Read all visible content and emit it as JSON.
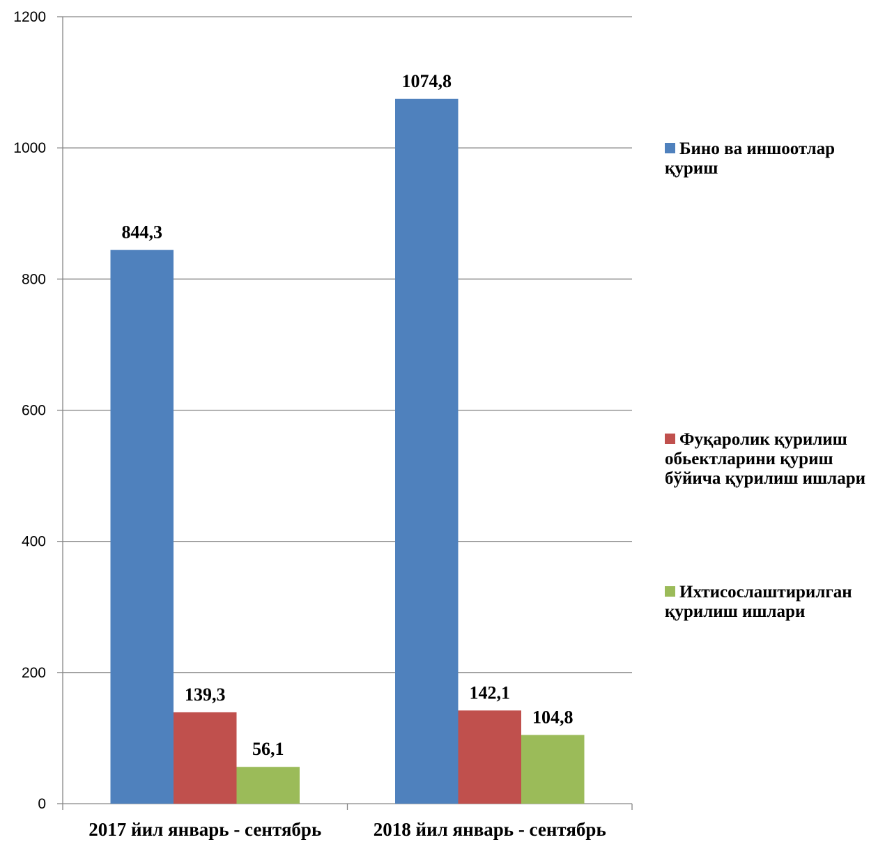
{
  "chart_data": {
    "type": "bar",
    "categories": [
      "2017 йил январь - сентябрь",
      "2018 йил январь - сентябрь"
    ],
    "series": [
      {
        "name": "Бино ва иншоотлар қуриш",
        "values": [
          844.3,
          1074.8
        ],
        "labels": [
          "844,3",
          "1074,8"
        ],
        "color": "#4F81BD"
      },
      {
        "name": "Фуқаролик қурилиш обьектларини қуриш бўйича қурилиш ишлари",
        "values": [
          139.3,
          142.1
        ],
        "labels": [
          "139,3",
          "142,1"
        ],
        "color": "#C0504D"
      },
      {
        "name": "Ихтисослаштирилган қурилиш ишлари",
        "values": [
          56.1,
          104.8
        ],
        "labels": [
          "56,1",
          "104,8"
        ],
        "color": "#9BBB59"
      }
    ],
    "ylim": [
      0,
      1200
    ],
    "yticks": [
      0,
      200,
      400,
      600,
      800,
      1000,
      1200
    ],
    "grid": true,
    "legend_position": "right",
    "title": "",
    "xlabel": "",
    "ylabel": ""
  }
}
